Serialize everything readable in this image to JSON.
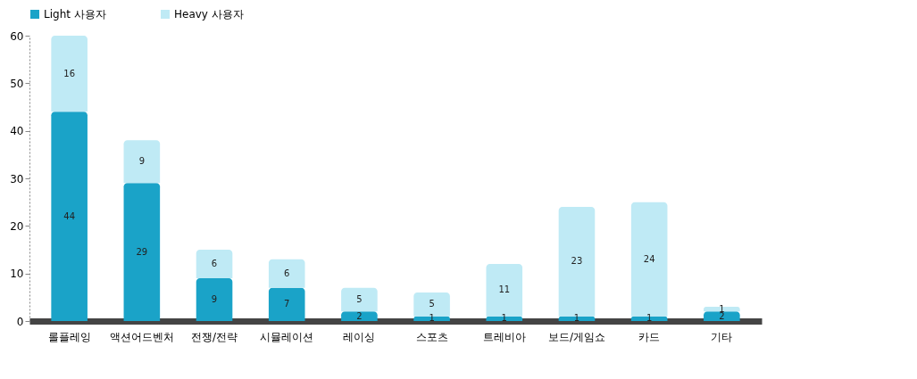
{
  "chart_data": {
    "type": "bar",
    "stacked": true,
    "categories": [
      "롤플레잉",
      "액션어드벤처",
      "전쟁/전략",
      "시뮬레이션",
      "레이싱",
      "스포츠",
      "트레비아",
      "보드/게임쇼",
      "카드",
      "기타"
    ],
    "series": [
      {
        "name": "Light 사용자",
        "color": "#1aa3c8",
        "values": [
          44,
          29,
          9,
          7,
          2,
          1,
          1,
          1,
          1,
          2
        ]
      },
      {
        "name": "Heavy 사용자",
        "color": "#bfeaf5",
        "values": [
          16,
          9,
          6,
          6,
          5,
          5,
          11,
          23,
          24,
          1
        ]
      }
    ],
    "ylim": [
      0,
      60
    ],
    "yticks": [
      0,
      10,
      20,
      30,
      40,
      50,
      60
    ],
    "data_labels": true,
    "legend": "top",
    "grid": false
  }
}
